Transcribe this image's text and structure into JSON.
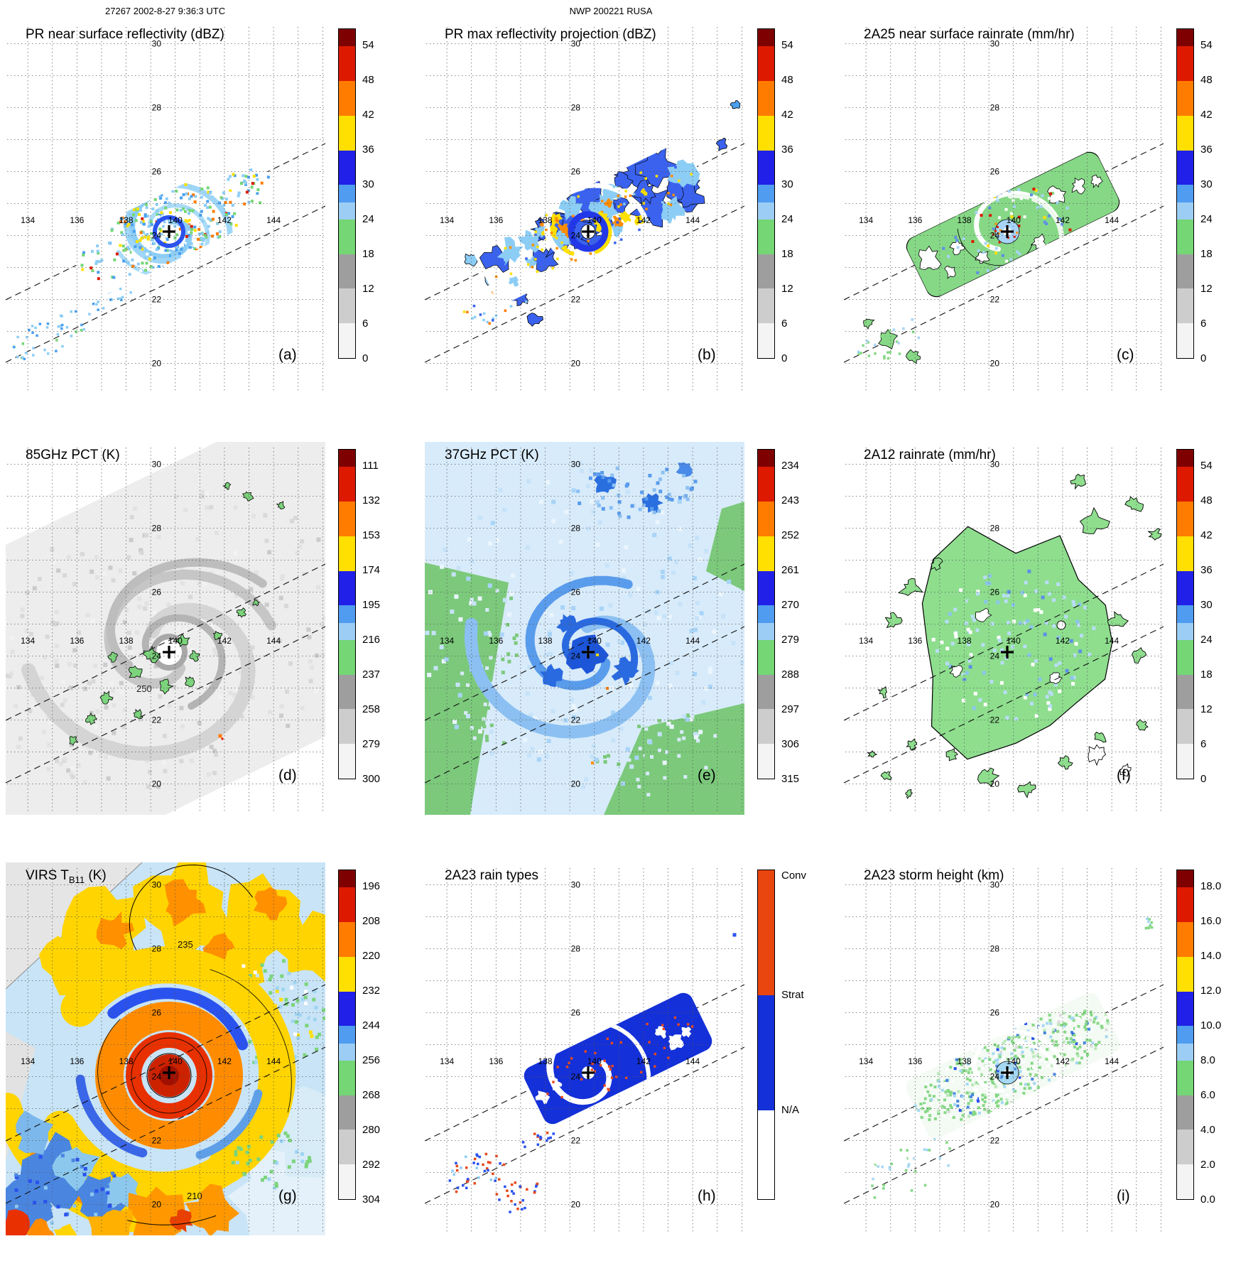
{
  "header": {
    "left": "27267 2002-8-27 9:36:3 UTC",
    "center": "NWP 200221 RUSA"
  },
  "axes": {
    "lon_ticks": [
      "134",
      "136",
      "138",
      "140",
      "142",
      "144"
    ],
    "lat_ticks": [
      "30",
      "28",
      "26",
      "24",
      "22",
      "20"
    ],
    "lon_range": [
      133.1,
      146.1
    ],
    "lat_range": [
      18.9,
      30.7
    ]
  },
  "storm_center": {
    "lon": 139.7,
    "lat": 24.1
  },
  "colorbar_palette": [
    [
      "#7e0000",
      0.5
    ],
    [
      "#dd1a00",
      1
    ],
    [
      "#ff7c00",
      1
    ],
    [
      "#ffe000",
      1
    ],
    [
      "#2020e8",
      1
    ],
    [
      "#4f9cf0",
      0.5
    ],
    [
      "#9ccdf5",
      0.5
    ],
    [
      "#74d674",
      1
    ],
    [
      "#9e9e9e",
      1
    ],
    [
      "#cdcdcd",
      1
    ],
    [
      "#f4f4f4",
      1
    ]
  ],
  "raintype_palette": [
    [
      "#e8450f",
      0.38
    ],
    [
      "#1430d8",
      0.35
    ],
    [
      "#ffffff",
      0.27
    ]
  ],
  "chart_data": [
    {
      "type": "heatmap",
      "panel_label": "(a)",
      "title": "PR near surface reflectivity (dBZ)",
      "units": "dBZ",
      "colorbar": {
        "kind": "numeric",
        "ticks": [
          "54",
          "48",
          "42",
          "36",
          "30",
          "24",
          "18",
          "12",
          "6",
          "0"
        ]
      }
    },
    {
      "type": "heatmap",
      "panel_label": "(b)",
      "title": "PR max reflectivity projection (dBZ)",
      "units": "dBZ",
      "colorbar": {
        "kind": "numeric",
        "ticks": [
          "54",
          "48",
          "42",
          "36",
          "30",
          "24",
          "18",
          "12",
          "6",
          "0"
        ]
      }
    },
    {
      "type": "heatmap",
      "panel_label": "(c)",
      "title": "2A25 near surface rainrate (mm/hr)",
      "units": "mm/hr",
      "colorbar": {
        "kind": "numeric",
        "ticks": [
          "54",
          "48",
          "42",
          "36",
          "30",
          "24",
          "18",
          "12",
          "6",
          "0"
        ]
      }
    },
    {
      "type": "heatmap",
      "panel_label": "(d)",
      "title": "85GHz PCT (K)",
      "units": "K",
      "contour_labels": [
        "250"
      ],
      "colorbar": {
        "kind": "numeric",
        "ticks": [
          "111",
          "132",
          "153",
          "174",
          "195",
          "216",
          "237",
          "258",
          "279",
          "300"
        ]
      }
    },
    {
      "type": "heatmap",
      "panel_label": "(e)",
      "title": "37GHz PCT (K)",
      "units": "K",
      "colorbar": {
        "kind": "numeric",
        "ticks": [
          "234",
          "243",
          "252",
          "261",
          "270",
          "279",
          "288",
          "297",
          "306",
          "315"
        ]
      }
    },
    {
      "type": "heatmap",
      "panel_label": "(f)",
      "title": "2A12 rainrate (mm/hr)",
      "units": "mm/hr",
      "colorbar": {
        "kind": "numeric",
        "ticks": [
          "54",
          "48",
          "42",
          "36",
          "30",
          "24",
          "18",
          "12",
          "6",
          "0"
        ]
      }
    },
    {
      "type": "heatmap",
      "panel_label": "(g)",
      "title": "VIRS TB11 (K)",
      "title_pre": "VIRS T",
      "title_sub": "B11",
      "title_post": " (K)",
      "units": "K",
      "contour_labels": [
        "235",
        "210"
      ],
      "colorbar": {
        "kind": "numeric",
        "ticks": [
          "196",
          "208",
          "220",
          "232",
          "244",
          "256",
          "268",
          "280",
          "292",
          "304"
        ]
      }
    },
    {
      "type": "heatmap",
      "panel_label": "(h)",
      "title": "2A23 rain types",
      "units": "",
      "colorbar": {
        "kind": "categorical",
        "labels": [
          "Conv",
          "Strat",
          "N/A"
        ]
      }
    },
    {
      "type": "heatmap",
      "panel_label": "(i)",
      "title": "2A23 storm height (km)",
      "units": "km",
      "colorbar": {
        "kind": "numeric",
        "ticks": [
          "18.0",
          "16.0",
          "14.0",
          "12.0",
          "10.0",
          "8.0",
          "6.0",
          "4.0",
          "2.0",
          "0.0"
        ]
      }
    }
  ]
}
